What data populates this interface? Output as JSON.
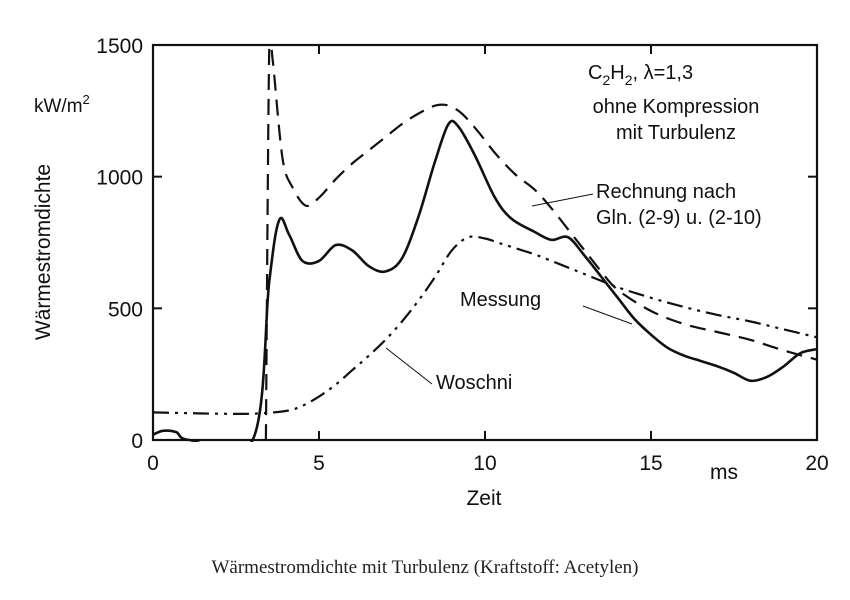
{
  "caption": "Wärmestromdichte mit Turbulenz (Kraftstoff: Acetylen)",
  "chart_data": {
    "type": "line",
    "xlabel": "Zeit",
    "x_unit": "ms",
    "ylabel": "Wärmestromdichte",
    "y_unit_base": "kW/m",
    "y_unit_exp": "2",
    "xlim": [
      0,
      20
    ],
    "ylim": [
      0,
      1500
    ],
    "x_ticks": [
      0,
      5,
      10,
      15,
      20
    ],
    "x_tick_labels": [
      "0",
      "5",
      "10",
      "15",
      "20"
    ],
    "y_ticks": [
      0,
      500,
      1000,
      1500
    ],
    "y_tick_labels": [
      "0",
      "500",
      "1000",
      "1500"
    ],
    "grid": false,
    "legend": "none",
    "conditions": {
      "fuel_c": "C",
      "fuel_h": "H",
      "sub": "2",
      "lambda": "λ=1,3",
      "line2": "ohne Kompression",
      "line3": "mit Turbulenz"
    },
    "annotations": [
      {
        "text": "Rechnung nach",
        "series": "rechnung"
      },
      {
        "text": "Gln. (2-9) u. (2-10)",
        "series": "rechnung"
      },
      {
        "text": "Messung",
        "series": "messung"
      },
      {
        "text": "Woschni",
        "series": "woschni"
      }
    ],
    "series": [
      {
        "key": "messung",
        "style": "solid",
        "points": [
          [
            0,
            20
          ],
          [
            0.3,
            35
          ],
          [
            0.7,
            30
          ],
          [
            1.1,
            0
          ],
          [
            3.0,
            0
          ],
          [
            3.5,
            600
          ],
          [
            3.8,
            835
          ],
          [
            4.1,
            780
          ],
          [
            4.5,
            680
          ],
          [
            5.0,
            680
          ],
          [
            5.5,
            740
          ],
          [
            6.0,
            720
          ],
          [
            6.5,
            660
          ],
          [
            7.0,
            640
          ],
          [
            7.5,
            690
          ],
          [
            8.0,
            850
          ],
          [
            8.5,
            1060
          ],
          [
            8.9,
            1200
          ],
          [
            9.2,
            1190
          ],
          [
            9.7,
            1080
          ],
          [
            10.3,
            920
          ],
          [
            10.8,
            840
          ],
          [
            11.5,
            790
          ],
          [
            12.0,
            760
          ],
          [
            12.5,
            770
          ],
          [
            13.0,
            700
          ],
          [
            13.5,
            620
          ],
          [
            14.0,
            540
          ],
          [
            14.5,
            460
          ],
          [
            15.0,
            400
          ],
          [
            15.5,
            350
          ],
          [
            16.0,
            320
          ],
          [
            16.5,
            300
          ],
          [
            17.0,
            280
          ],
          [
            17.5,
            255
          ],
          [
            18.0,
            225
          ],
          [
            18.5,
            240
          ],
          [
            19.0,
            280
          ],
          [
            19.5,
            330
          ],
          [
            20.0,
            345
          ]
        ]
      },
      {
        "key": "rechnung",
        "style": "dashed",
        "points": [
          [
            3.4,
            0
          ],
          [
            3.5,
            1480
          ],
          [
            3.6,
            1450
          ],
          [
            3.9,
            1070
          ],
          [
            4.2,
            960
          ],
          [
            4.6,
            890
          ],
          [
            5.0,
            920
          ],
          [
            5.5,
            990
          ],
          [
            6.0,
            1050
          ],
          [
            6.5,
            1100
          ],
          [
            7.0,
            1150
          ],
          [
            7.5,
            1200
          ],
          [
            8.0,
            1240
          ],
          [
            8.5,
            1270
          ],
          [
            8.9,
            1270
          ],
          [
            9.3,
            1240
          ],
          [
            9.8,
            1170
          ],
          [
            10.3,
            1090
          ],
          [
            10.9,
            1010
          ],
          [
            11.5,
            950
          ],
          [
            12.0,
            880
          ],
          [
            12.5,
            800
          ],
          [
            13.0,
            720
          ],
          [
            13.5,
            640
          ],
          [
            14.0,
            570
          ],
          [
            15.0,
            490
          ],
          [
            16.0,
            440
          ],
          [
            17.0,
            410
          ],
          [
            18.0,
            380
          ],
          [
            19.0,
            340
          ],
          [
            20.0,
            305
          ]
        ]
      },
      {
        "key": "woschni",
        "style": "dashdotdot",
        "points": [
          [
            0,
            105
          ],
          [
            1.0,
            102
          ],
          [
            2.0,
            100
          ],
          [
            3.0,
            100
          ],
          [
            4.0,
            110
          ],
          [
            4.5,
            130
          ],
          [
            5.0,
            165
          ],
          [
            5.5,
            210
          ],
          [
            6.0,
            265
          ],
          [
            6.5,
            320
          ],
          [
            7.0,
            380
          ],
          [
            7.5,
            450
          ],
          [
            8.0,
            530
          ],
          [
            8.5,
            620
          ],
          [
            9.0,
            720
          ],
          [
            9.5,
            770
          ],
          [
            10.0,
            765
          ],
          [
            10.5,
            745
          ],
          [
            11.0,
            725
          ],
          [
            11.5,
            705
          ],
          [
            12.0,
            680
          ],
          [
            12.5,
            655
          ],
          [
            13.0,
            630
          ],
          [
            14.0,
            580
          ],
          [
            15.0,
            540
          ],
          [
            16.0,
            505
          ],
          [
            17.0,
            475
          ],
          [
            18.0,
            450
          ],
          [
            19.0,
            420
          ],
          [
            20.0,
            390
          ]
        ]
      }
    ]
  }
}
